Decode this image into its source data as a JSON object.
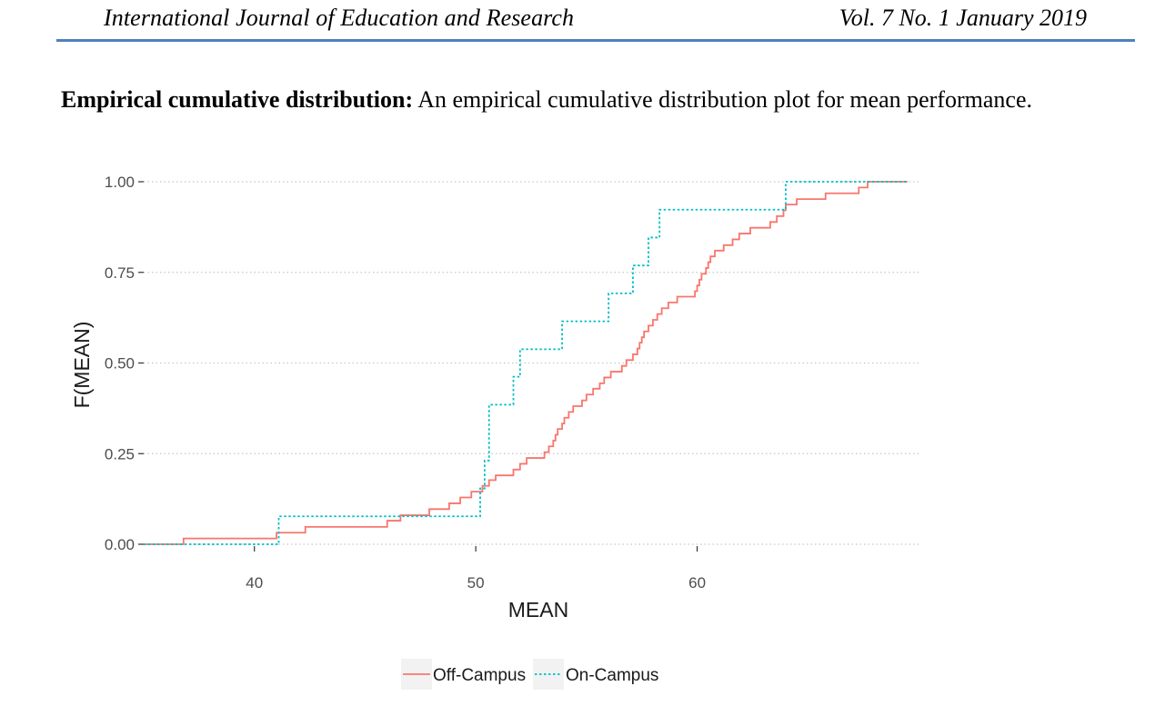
{
  "header": {
    "journal": "International Journal of Education and Research",
    "issue": "Vol. 7 No. 1 January 2019",
    "rule_color": "#4f81bd"
  },
  "paragraph": {
    "lead": "Empirical cumulative distribution:",
    "text": "An empirical cumulative distribution plot for mean performance."
  },
  "chart_data": {
    "type": "line",
    "step": true,
    "xlabel": "MEAN",
    "ylabel": "F(MEAN)",
    "xlim": [
      35,
      70
    ],
    "ylim": [
      0,
      1
    ],
    "x_ticks": [
      40,
      50,
      60
    ],
    "x_tick_labels": [
      "40",
      "50",
      "60"
    ],
    "y_ticks": [
      0,
      0.25,
      0.5,
      0.75,
      1
    ],
    "y_tick_labels": [
      "0.00",
      "0.25",
      "0.50",
      "0.75",
      "1.00"
    ],
    "grid": "horizontal dotted",
    "legend_position": "bottom",
    "series": [
      {
        "name": "Off-Campus",
        "color": "#f8766d",
        "linestyle": "solid",
        "points": [
          [
            35,
            0
          ],
          [
            36.8,
            0.016
          ],
          [
            41,
            0.032
          ],
          [
            42.3,
            0.048
          ],
          [
            46,
            0.065
          ],
          [
            46.6,
            0.08
          ],
          [
            47.9,
            0.097
          ],
          [
            48.8,
            0.113
          ],
          [
            49.3,
            0.129
          ],
          [
            49.8,
            0.145
          ],
          [
            50.3,
            0.161
          ],
          [
            50.6,
            0.177
          ],
          [
            50.9,
            0.19
          ],
          [
            51.7,
            0.206
          ],
          [
            52,
            0.222
          ],
          [
            52.3,
            0.238
          ],
          [
            53.1,
            0.254
          ],
          [
            53.3,
            0.27
          ],
          [
            53.5,
            0.286
          ],
          [
            53.6,
            0.302
          ],
          [
            53.7,
            0.318
          ],
          [
            53.9,
            0.333
          ],
          [
            54,
            0.349
          ],
          [
            54.2,
            0.365
          ],
          [
            54.4,
            0.381
          ],
          [
            54.8,
            0.397
          ],
          [
            55,
            0.413
          ],
          [
            55.3,
            0.429
          ],
          [
            55.6,
            0.444
          ],
          [
            55.8,
            0.46
          ],
          [
            56.1,
            0.476
          ],
          [
            56.6,
            0.492
          ],
          [
            56.8,
            0.508
          ],
          [
            57.1,
            0.524
          ],
          [
            57.3,
            0.54
          ],
          [
            57.4,
            0.556
          ],
          [
            57.5,
            0.571
          ],
          [
            57.6,
            0.587
          ],
          [
            57.8,
            0.603
          ],
          [
            58,
            0.619
          ],
          [
            58.2,
            0.635
          ],
          [
            58.4,
            0.651
          ],
          [
            58.7,
            0.667
          ],
          [
            59.1,
            0.683
          ],
          [
            59.9,
            0.698
          ],
          [
            60,
            0.714
          ],
          [
            60.1,
            0.73
          ],
          [
            60.2,
            0.746
          ],
          [
            60.4,
            0.762
          ],
          [
            60.5,
            0.778
          ],
          [
            60.6,
            0.794
          ],
          [
            60.8,
            0.81
          ],
          [
            61.2,
            0.825
          ],
          [
            61.6,
            0.841
          ],
          [
            61.9,
            0.857
          ],
          [
            62.4,
            0.873
          ],
          [
            63.3,
            0.889
          ],
          [
            63.6,
            0.905
          ],
          [
            63.9,
            0.921
          ],
          [
            64,
            0.937
          ],
          [
            64.5,
            0.952
          ],
          [
            65.8,
            0.968
          ],
          [
            67.3,
            0.984
          ],
          [
            67.7,
            1
          ],
          [
            69.5,
            1
          ]
        ]
      },
      {
        "name": "On-Campus",
        "color": "#00bfc4",
        "linestyle": "dotted",
        "points": [
          [
            35,
            0
          ],
          [
            41.1,
            0.077
          ],
          [
            50.2,
            0.154
          ],
          [
            50.4,
            0.231
          ],
          [
            50.6,
            0.385
          ],
          [
            51.7,
            0.462
          ],
          [
            52,
            0.538
          ],
          [
            53.9,
            0.615
          ],
          [
            56,
            0.692
          ],
          [
            57.1,
            0.769
          ],
          [
            57.8,
            0.846
          ],
          [
            58.3,
            0.923
          ],
          [
            64,
            1
          ],
          [
            69.5,
            1
          ]
        ]
      }
    ]
  }
}
